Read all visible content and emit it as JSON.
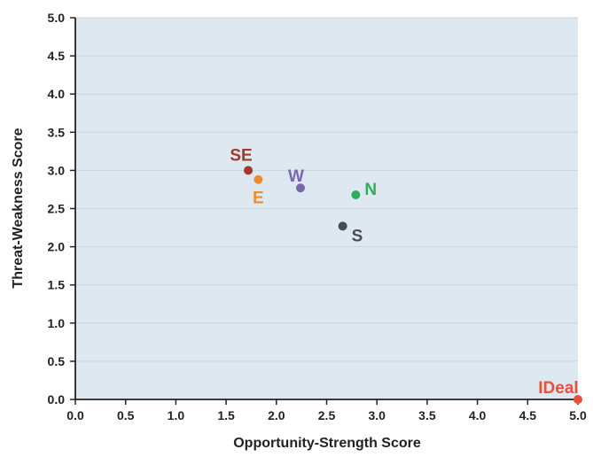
{
  "chart_data": {
    "type": "scatter",
    "title": "",
    "xlabel": "Opportunity-Strength Score",
    "ylabel": "Threat-Weakness Score",
    "xlim": [
      0,
      5
    ],
    "ylim": [
      0,
      5
    ],
    "x_ticks": [
      "0.0",
      "0.5",
      "1.0",
      "1.5",
      "2.0",
      "2.5",
      "3.0",
      "3.5",
      "4.0",
      "4.5",
      "5.0"
    ],
    "y_ticks": [
      "0.0",
      "0.5",
      "1.0",
      "1.5",
      "2.0",
      "2.5",
      "3.0",
      "3.5",
      "4.0",
      "4.5",
      "5.0"
    ],
    "grid": true,
    "background": "#dde8f1",
    "points": [
      {
        "label": "SE",
        "x": 1.72,
        "y": 3.0,
        "color": "#a0392e",
        "label_pos": "above-left"
      },
      {
        "label": "E",
        "x": 1.82,
        "y": 2.88,
        "color": "#f08c2e",
        "label_pos": "below"
      },
      {
        "label": "W",
        "x": 2.24,
        "y": 2.77,
        "color": "#7a66ad",
        "label_pos": "above-left"
      },
      {
        "label": "N",
        "x": 2.79,
        "y": 2.68,
        "color": "#2eae5a",
        "label_pos": "right"
      },
      {
        "label": "S",
        "x": 2.66,
        "y": 2.27,
        "color": "#4a4a4f",
        "label_pos": "below-right"
      },
      {
        "label": "IDeal",
        "x": 5.0,
        "y": 0.0,
        "color": "#e8503a",
        "label_pos": "above-left"
      }
    ]
  }
}
